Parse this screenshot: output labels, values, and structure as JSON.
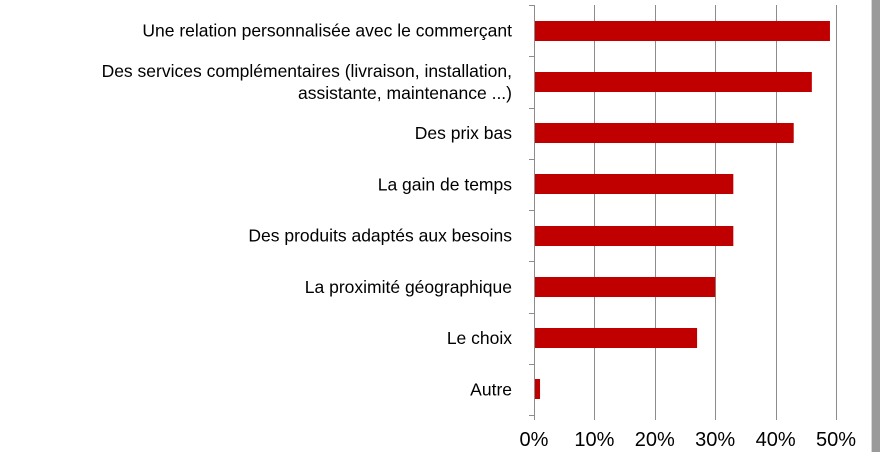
{
  "chart_data": {
    "type": "bar",
    "orientation": "horizontal",
    "categories": [
      "Une relation personnalisée avec le commerçant",
      "Des services complémentaires (livraison, installation,|assistante, maintenance ...)",
      "Des prix bas",
      "La gain de temps",
      "Des produits adaptés aux besoins",
      "La proximité géographique",
      "Le choix",
      "Autre"
    ],
    "values": [
      49,
      46,
      43,
      33,
      33,
      30,
      27,
      1
    ],
    "xlim": [
      0,
      50
    ],
    "ticks": [
      0,
      10,
      20,
      30,
      40,
      50
    ],
    "tick_labels": [
      "0%",
      "10%",
      "20%",
      "30%",
      "40%",
      "50%"
    ],
    "grid": "vertical",
    "bar_color": "#c00000",
    "title": "",
    "xlabel": "",
    "ylabel": ""
  }
}
